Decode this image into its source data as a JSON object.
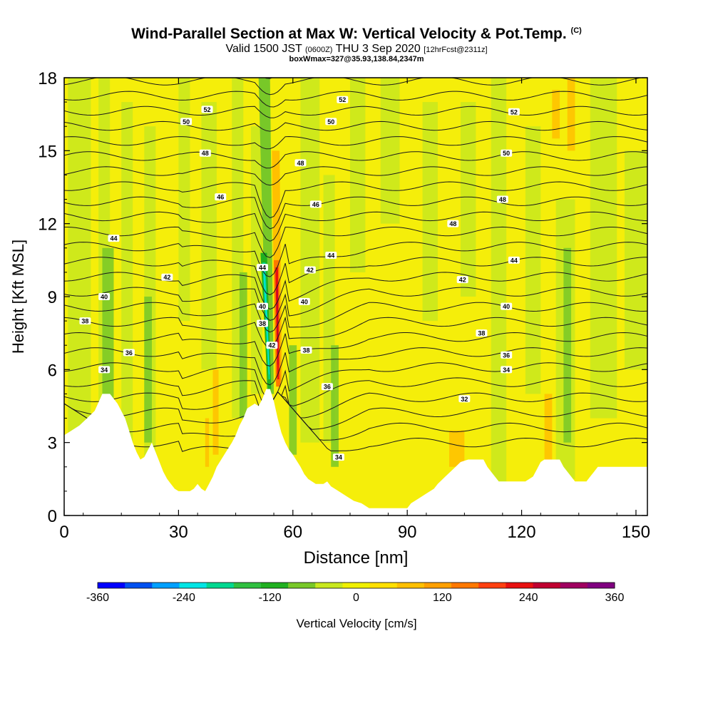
{
  "header": {
    "title": "Wind-Parallel Section at Max W: Vertical Velocity & Pot.Temp.",
    "title_mark": "(C)",
    "valid_prefix": "Valid 1500 JST",
    "valid_z": "(0600Z)",
    "valid_date": "THU 3 Sep 2020",
    "forecast": "[12hrFcst@2311z]",
    "boxline": "boxWmax=327@35.93,138.84,2347m"
  },
  "colorbar": {
    "label": "Vertical Velocity [cm/s]",
    "ticks": [
      "-360",
      "-240",
      "-120",
      "0",
      "120",
      "240",
      "360"
    ],
    "colors": [
      "#0000ff",
      "#0050f0",
      "#00a0ff",
      "#00e5e5",
      "#00d890",
      "#30c040",
      "#20b020",
      "#78c828",
      "#c8e81e",
      "#f0f000",
      "#ffe000",
      "#ffc000",
      "#ffa000",
      "#ff7800",
      "#ff4010",
      "#e81010",
      "#c00030",
      "#a00060",
      "#800080"
    ]
  },
  "chart_data": {
    "type": "heatmap",
    "xlabel": "Distance [nm]",
    "ylabel": "Height [Kft MSL]",
    "xlim": [
      0,
      153
    ],
    "ylim": [
      0,
      18
    ],
    "x_ticks": [
      "0",
      "30",
      "60",
      "90",
      "120",
      "150"
    ],
    "y_ticks": [
      "0",
      "3",
      "6",
      "9",
      "12",
      "15",
      "18"
    ],
    "x_tick_values": [
      0,
      30,
      60,
      90,
      120,
      150
    ],
    "y_tick_values": [
      0,
      3,
      6,
      9,
      12,
      15,
      18
    ],
    "terrain_kft": [
      [
        0,
        3.3
      ],
      [
        2,
        3.5
      ],
      [
        4,
        3.7
      ],
      [
        6,
        4.0
      ],
      [
        8,
        4.3
      ],
      [
        10,
        5.0
      ],
      [
        12,
        5.0
      ],
      [
        14,
        4.6
      ],
      [
        16,
        4.0
      ],
      [
        17,
        3.5
      ],
      [
        18,
        3.0
      ],
      [
        19,
        2.6
      ],
      [
        20,
        2.3
      ],
      [
        21,
        2.4
      ],
      [
        22,
        2.7
      ],
      [
        23,
        3.0
      ],
      [
        24,
        2.6
      ],
      [
        25,
        2.2
      ],
      [
        26,
        1.8
      ],
      [
        27,
        1.5
      ],
      [
        28,
        1.3
      ],
      [
        29,
        1.1
      ],
      [
        30,
        1.0
      ],
      [
        33,
        1.0
      ],
      [
        34,
        1.1
      ],
      [
        35,
        1.3
      ],
      [
        36,
        1.1
      ],
      [
        37,
        1.0
      ],
      [
        38,
        1.3
      ],
      [
        39,
        1.6
      ],
      [
        40,
        2.0
      ],
      [
        42,
        2.5
      ],
      [
        44,
        3.0
      ],
      [
        45,
        3.3
      ],
      [
        46,
        3.7
      ],
      [
        47,
        4.0
      ],
      [
        48,
        4.4
      ],
      [
        50,
        4.6
      ],
      [
        51,
        4.5
      ],
      [
        52,
        4.8
      ],
      [
        53,
        5.2
      ],
      [
        54,
        5.2
      ],
      [
        55,
        4.7
      ],
      [
        56,
        4.0
      ],
      [
        57,
        3.4
      ],
      [
        58,
        3.0
      ],
      [
        59,
        2.7
      ],
      [
        60,
        2.5
      ],
      [
        62,
        2.0
      ],
      [
        63,
        1.7
      ],
      [
        64,
        1.5
      ],
      [
        66,
        1.3
      ],
      [
        68,
        1.3
      ],
      [
        69,
        1.4
      ],
      [
        70,
        1.2
      ],
      [
        72,
        1.0
      ],
      [
        74,
        0.8
      ],
      [
        76,
        0.6
      ],
      [
        78,
        0.5
      ],
      [
        80,
        0.3
      ],
      [
        90,
        0.3
      ],
      [
        91,
        0.5
      ],
      [
        93,
        0.7
      ],
      [
        95,
        0.9
      ],
      [
        97,
        1.1
      ],
      [
        98,
        1.3
      ],
      [
        100,
        1.6
      ],
      [
        102,
        1.9
      ],
      [
        104,
        2.2
      ],
      [
        106,
        2.3
      ],
      [
        110,
        2.3
      ],
      [
        111,
        2.0
      ],
      [
        112,
        1.8
      ],
      [
        113,
        1.6
      ],
      [
        114,
        1.4
      ],
      [
        121,
        1.4
      ],
      [
        123,
        1.6
      ],
      [
        124,
        1.9
      ],
      [
        125,
        2.2
      ],
      [
        126,
        2.3
      ],
      [
        130,
        2.3
      ],
      [
        131,
        2.0
      ],
      [
        133,
        1.6
      ],
      [
        134,
        1.4
      ],
      [
        137,
        1.4
      ],
      [
        138,
        1.6
      ],
      [
        139,
        1.8
      ],
      [
        140,
        2.0
      ],
      [
        153,
        2.0
      ]
    ],
    "theta_contour_labels": [
      {
        "value": "34",
        "x": 10.5,
        "y": 6.0
      },
      {
        "value": "36",
        "x": 17,
        "y": 6.7
      },
      {
        "value": "38",
        "x": 5.5,
        "y": 8.0
      },
      {
        "value": "40",
        "x": 10.5,
        "y": 9.0
      },
      {
        "value": "42",
        "x": 27,
        "y": 9.8
      },
      {
        "value": "44",
        "x": 13,
        "y": 11.4
      },
      {
        "value": "46",
        "x": 41,
        "y": 13.1
      },
      {
        "value": "48",
        "x": 37,
        "y": 14.9
      },
      {
        "value": "50",
        "x": 32,
        "y": 16.2
      },
      {
        "value": "52",
        "x": 37.5,
        "y": 16.7
      },
      {
        "value": "44",
        "x": 52,
        "y": 10.2
      },
      {
        "value": "40",
        "x": 52,
        "y": 8.6
      },
      {
        "value": "38",
        "x": 52,
        "y": 7.9
      },
      {
        "value": "42",
        "x": 54.5,
        "y": 7.0
      },
      {
        "value": "40",
        "x": 63,
        "y": 8.8
      },
      {
        "value": "38",
        "x": 63.5,
        "y": 6.8
      },
      {
        "value": "36",
        "x": 69,
        "y": 5.3
      },
      {
        "value": "34",
        "x": 72,
        "y": 2.4
      },
      {
        "value": "42",
        "x": 64.5,
        "y": 10.1
      },
      {
        "value": "44",
        "x": 70,
        "y": 10.7
      },
      {
        "value": "46",
        "x": 66,
        "y": 12.8
      },
      {
        "value": "48",
        "x": 62,
        "y": 14.5
      },
      {
        "value": "50",
        "x": 70,
        "y": 16.2
      },
      {
        "value": "52",
        "x": 73,
        "y": 17.1
      },
      {
        "value": "48",
        "x": 102,
        "y": 12.0
      },
      {
        "value": "42",
        "x": 104.5,
        "y": 9.7
      },
      {
        "value": "38",
        "x": 109.5,
        "y": 7.5
      },
      {
        "value": "36",
        "x": 116,
        "y": 6.6
      },
      {
        "value": "34",
        "x": 116,
        "y": 6.0
      },
      {
        "value": "32",
        "x": 105,
        "y": 4.8
      },
      {
        "value": "40",
        "x": 116,
        "y": 8.6
      },
      {
        "value": "44",
        "x": 118,
        "y": 10.5
      },
      {
        "value": "48",
        "x": 115,
        "y": 13.0
      },
      {
        "value": "50",
        "x": 116,
        "y": 14.9
      },
      {
        "value": "52",
        "x": 118,
        "y": 16.6
      }
    ]
  }
}
